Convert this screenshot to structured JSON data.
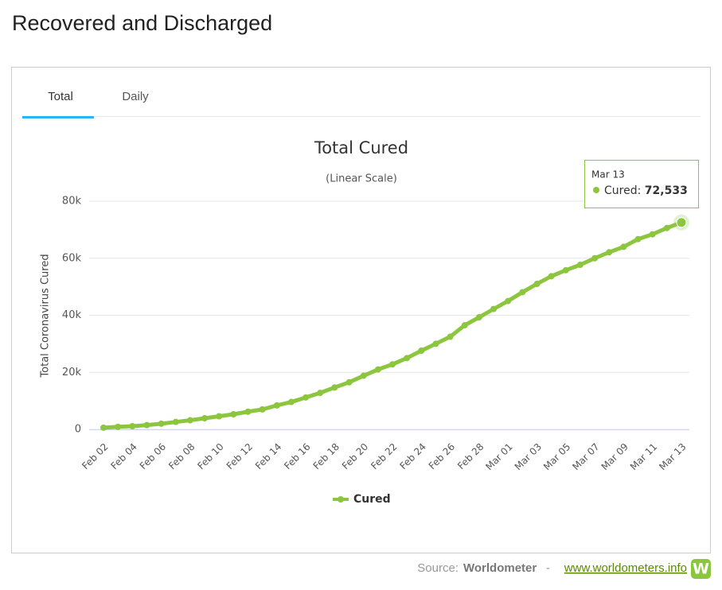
{
  "page": {
    "heading": "Recovered and Discharged",
    "tabs": [
      "Total",
      "Daily"
    ],
    "source_label": "Source:",
    "source_name": "Worldometer",
    "source_sep": "-",
    "source_url": "www.worldometers.info",
    "logo": "W"
  },
  "chart_data": {
    "type": "line",
    "title": "Total Cured",
    "subtitle": "(Linear Scale)",
    "y_label": "Total Coronavirus Cured",
    "categories": [
      "Feb 02",
      null,
      "Feb 04",
      null,
      "Feb 06",
      null,
      "Feb 08",
      null,
      "Feb 10",
      null,
      "Feb 12",
      null,
      "Feb 14",
      null,
      "Feb 16",
      null,
      "Feb 18",
      null,
      "Feb 20",
      null,
      "Feb 22",
      null,
      "Feb 24",
      null,
      "Feb 26",
      null,
      "Feb 28",
      null,
      "Mar 01",
      null,
      "Mar 03",
      null,
      "Mar 05",
      null,
      "Mar 07",
      null,
      "Mar 09",
      null,
      "Mar 11",
      null,
      "Mar 13"
    ],
    "series": [
      {
        "name": "Cured",
        "color": "#8cc63f",
        "values": [
          600,
          900,
          1100,
          1500,
          2000,
          2600,
          3200,
          3900,
          4600,
          5300,
          6200,
          7000,
          8400,
          9600,
          11200,
          12800,
          14700,
          16500,
          18800,
          21000,
          22800,
          25000,
          27600,
          30000,
          32500,
          36500,
          39300,
          42200,
          45000,
          48100,
          51000,
          53700,
          55800,
          57700,
          60000,
          62100,
          64000,
          66700,
          68400,
          70600,
          72533
        ]
      }
    ],
    "ylim": [
      0,
      80000
    ],
    "yticks": [
      0,
      {
        "value": 20000,
        "label": "20k"
      },
      {
        "value": 40000,
        "label": "40k"
      },
      {
        "value": 60000,
        "label": "60k"
      },
      {
        "value": 80000,
        "label": "80k"
      }
    ],
    "grid": true,
    "tooltip": {
      "title": "Mar 13",
      "text": "Cured:",
      "value": "72,533"
    }
  }
}
